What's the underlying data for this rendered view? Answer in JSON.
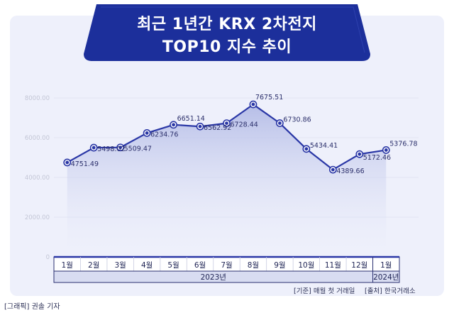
{
  "title": {
    "line1": "최근 1년간 KRX 2차전지",
    "line2": "TOP10 지수 추이"
  },
  "colors": {
    "banner": "#1c2f9b",
    "line": "#2a37a6",
    "area_top": "#b8bfe8",
    "card": "#eef0fb"
  },
  "chart_data": {
    "type": "line",
    "categories": [
      "1월",
      "2월",
      "3월",
      "4월",
      "5월",
      "6월",
      "7월",
      "8월",
      "9월",
      "10월",
      "11월",
      "12월",
      "1월"
    ],
    "series": [
      {
        "values": [
          4751.49,
          5498.02,
          5509.47,
          6234.76,
          6651.14,
          6562.92,
          6728.44,
          7675.51,
          6730.86,
          5434.41,
          4389.66,
          5172.46,
          5376.78
        ]
      }
    ],
    "value_labels": [
      "4751.49",
      "5498.02",
      "5509.47",
      "6234.76",
      "6651.14",
      "6562.92",
      "6728.44",
      "7675.51",
      "6730.86",
      "5434.41",
      "4389.66",
      "5172.46",
      "5376.78"
    ],
    "yticks": [
      "0",
      "2000.00",
      "4000.00",
      "6000.00",
      "8000.00"
    ],
    "ylim": [
      0,
      8000
    ],
    "year_groups": [
      {
        "label": "2023년",
        "count": 12
      },
      {
        "label": "2024년",
        "count": 1
      }
    ],
    "grid": true
  },
  "notes": {
    "basis": "[기준] 매월 첫 거래일",
    "source": "[출처] 한국거래소"
  },
  "credit": "[그래픽] 권솔 기자"
}
